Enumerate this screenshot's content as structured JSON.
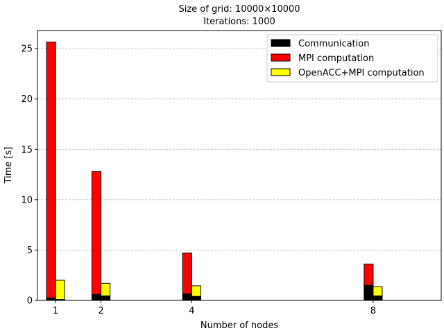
{
  "chart_data": {
    "type": "bar",
    "stacked": true,
    "title_lines": [
      "Size of grid: 10000×10000",
      "Iterations: 1000"
    ],
    "xlabel": "Number of nodes",
    "ylabel": "Time [s]",
    "x": [
      1,
      2,
      4,
      8
    ],
    "x_ticks": [
      "1",
      "2",
      "4",
      "8"
    ],
    "xlim": [
      0.6,
      9.5
    ],
    "ylim": [
      0,
      26.8
    ],
    "y_ticks": [
      0,
      5,
      10,
      15,
      20,
      25
    ],
    "grid": "y-dashed",
    "legend_position": "top-right",
    "groups": [
      {
        "name": "MPI",
        "communication": [
          0.25,
          0.6,
          0.65,
          1.5
        ],
        "computation_name": "MPI computation",
        "computation": [
          25.4,
          12.2,
          4.05,
          2.1
        ]
      },
      {
        "name": "OpenACC+MPI",
        "communication": [
          0.1,
          0.45,
          0.4,
          0.45
        ],
        "computation_name": "OpenACC+MPI computation",
        "computation": [
          1.9,
          1.25,
          1.05,
          0.9
        ]
      }
    ],
    "legend": [
      {
        "label": "Communication",
        "color": "#000000"
      },
      {
        "label": "MPI computation",
        "color": "#ff0000"
      },
      {
        "label": "OpenACC+MPI computation",
        "color": "#ffff00"
      }
    ],
    "colors": {
      "communication": "#000000",
      "mpi": "#ff0000",
      "openacc": "#ffff00"
    }
  }
}
